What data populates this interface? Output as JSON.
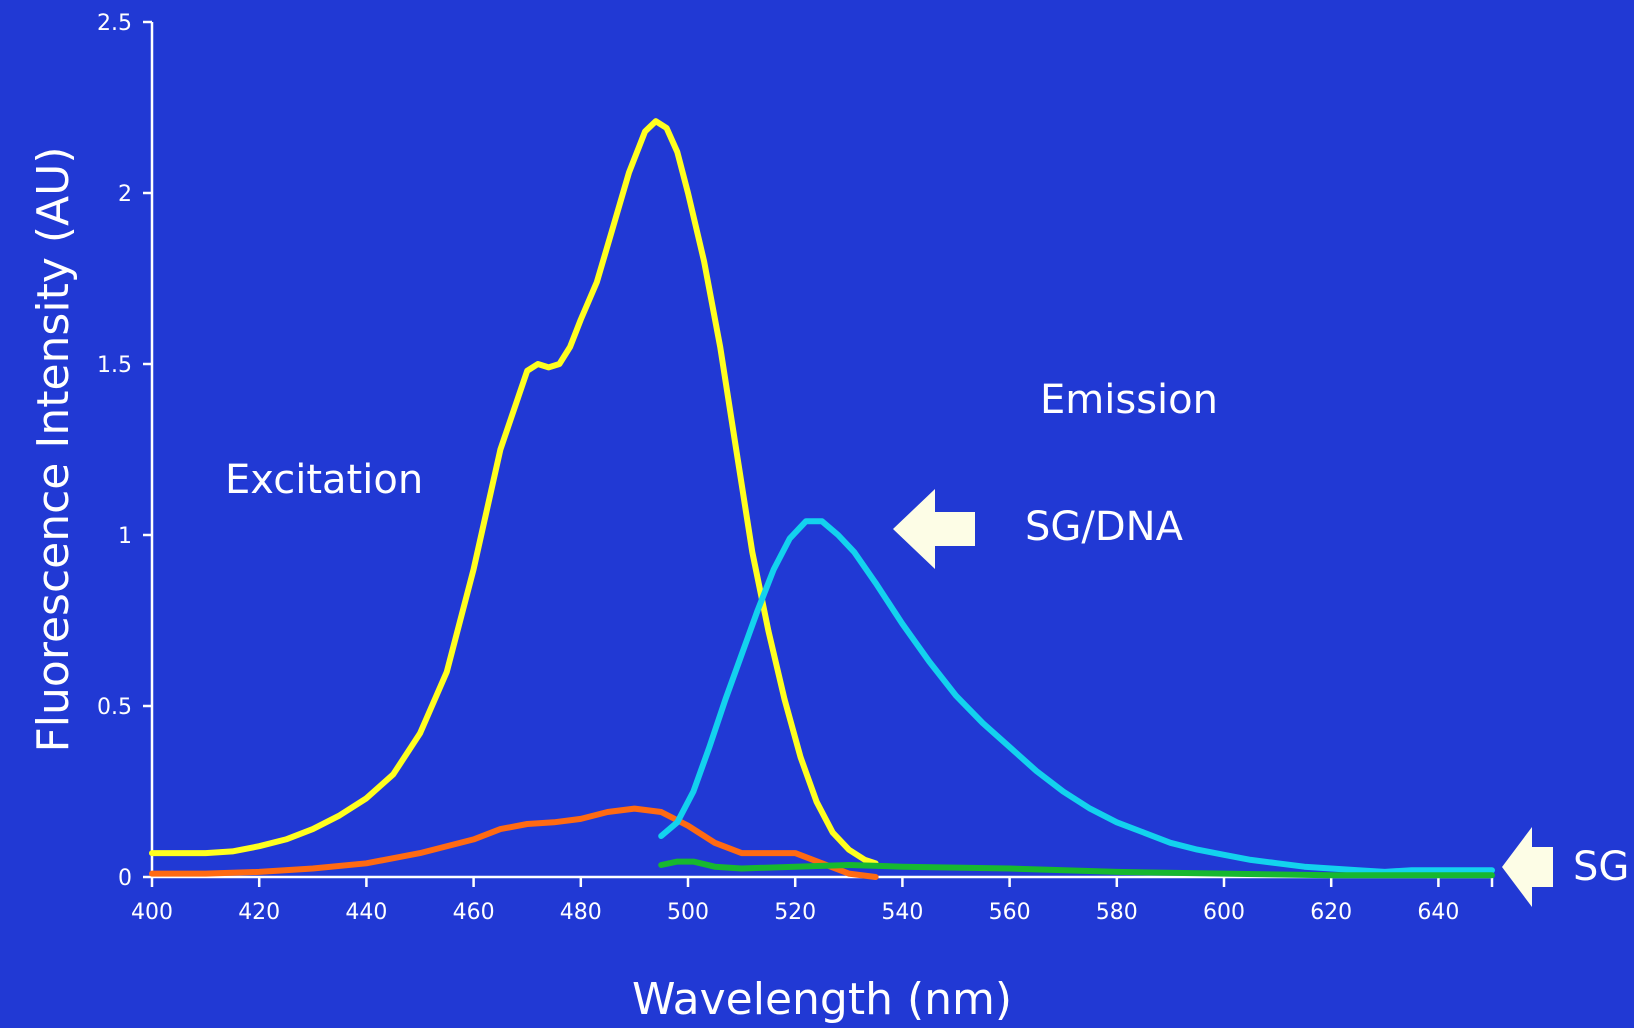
{
  "colors": {
    "background": "#2139d4",
    "axis": "#ffffff",
    "arrow": "#fdfde6",
    "sg_dna_excitation": "#ffff1f",
    "sg_excitation": "#ff6a12",
    "sg_dna_emission": "#13d2ee",
    "sg_emission": "#17b82f"
  },
  "annotations": {
    "excitation": "Excitation",
    "emission": "Emission",
    "sg_dna": "SG/DNA",
    "sg": "SG"
  },
  "chart_data": {
    "type": "line",
    "title": "",
    "xlabel": "Wavelength (nm)",
    "ylabel": "Fluorescence Intensity (AU)",
    "xlim": [
      400,
      650
    ],
    "ylim": [
      0,
      2.5
    ],
    "xticks": [
      400,
      420,
      440,
      460,
      480,
      500,
      520,
      540,
      560,
      580,
      600,
      620,
      640
    ],
    "yticks": [
      0,
      0.5,
      1,
      1.5,
      2,
      2.5
    ],
    "ytick_labels": [
      "0",
      "0.5",
      "1",
      "1.5",
      "2",
      "2.5"
    ],
    "grid": false,
    "legend": "none",
    "series": [
      {
        "color_key": "sg_dna_excitation",
        "x": [
          400,
          405,
          410,
          415,
          420,
          425,
          430,
          435,
          440,
          445,
          450,
          455,
          460,
          465,
          470,
          472,
          474,
          476,
          478,
          480,
          483,
          486,
          489,
          492,
          494,
          496,
          498,
          500,
          503,
          506,
          509,
          512,
          515,
          518,
          521,
          524,
          527,
          530,
          533,
          535
        ],
        "y": [
          0.07,
          0.07,
          0.07,
          0.075,
          0.09,
          0.11,
          0.14,
          0.18,
          0.23,
          0.3,
          0.42,
          0.6,
          0.9,
          1.25,
          1.48,
          1.5,
          1.49,
          1.5,
          1.55,
          1.63,
          1.74,
          1.9,
          2.06,
          2.18,
          2.21,
          2.19,
          2.12,
          2.0,
          1.8,
          1.55,
          1.25,
          0.95,
          0.72,
          0.52,
          0.35,
          0.22,
          0.13,
          0.08,
          0.05,
          0.04
        ]
      },
      {
        "color_key": "sg_excitation",
        "x": [
          400,
          410,
          420,
          430,
          440,
          450,
          460,
          465,
          470,
          475,
          480,
          485,
          490,
          495,
          500,
          505,
          510,
          515,
          520,
          525,
          530,
          535
        ],
        "y": [
          0.01,
          0.01,
          0.015,
          0.025,
          0.04,
          0.07,
          0.11,
          0.14,
          0.155,
          0.16,
          0.17,
          0.19,
          0.2,
          0.19,
          0.15,
          0.1,
          0.07,
          0.07,
          0.07,
          0.04,
          0.01,
          0.0
        ]
      },
      {
        "color_key": "sg_dna_emission",
        "x": [
          495,
          498,
          501,
          504,
          507,
          510,
          513,
          516,
          519,
          522,
          525,
          528,
          531,
          535,
          540,
          545,
          550,
          555,
          560,
          565,
          570,
          575,
          580,
          585,
          590,
          595,
          600,
          605,
          610,
          615,
          620,
          625,
          630,
          635,
          640,
          645,
          650
        ],
        "y": [
          0.12,
          0.16,
          0.25,
          0.38,
          0.52,
          0.65,
          0.78,
          0.9,
          0.99,
          1.04,
          1.04,
          1.0,
          0.95,
          0.86,
          0.74,
          0.63,
          0.53,
          0.45,
          0.38,
          0.31,
          0.25,
          0.2,
          0.16,
          0.13,
          0.1,
          0.08,
          0.065,
          0.05,
          0.04,
          0.03,
          0.025,
          0.02,
          0.015,
          0.02,
          0.02,
          0.02,
          0.02
        ]
      },
      {
        "color_key": "sg_emission",
        "x": [
          495,
          498,
          501,
          505,
          510,
          520,
          530,
          540,
          560,
          580,
          600,
          620,
          640,
          650
        ],
        "y": [
          0.035,
          0.045,
          0.045,
          0.03,
          0.025,
          0.03,
          0.035,
          0.03,
          0.025,
          0.015,
          0.01,
          0.005,
          0.005,
          0.005
        ]
      }
    ]
  }
}
